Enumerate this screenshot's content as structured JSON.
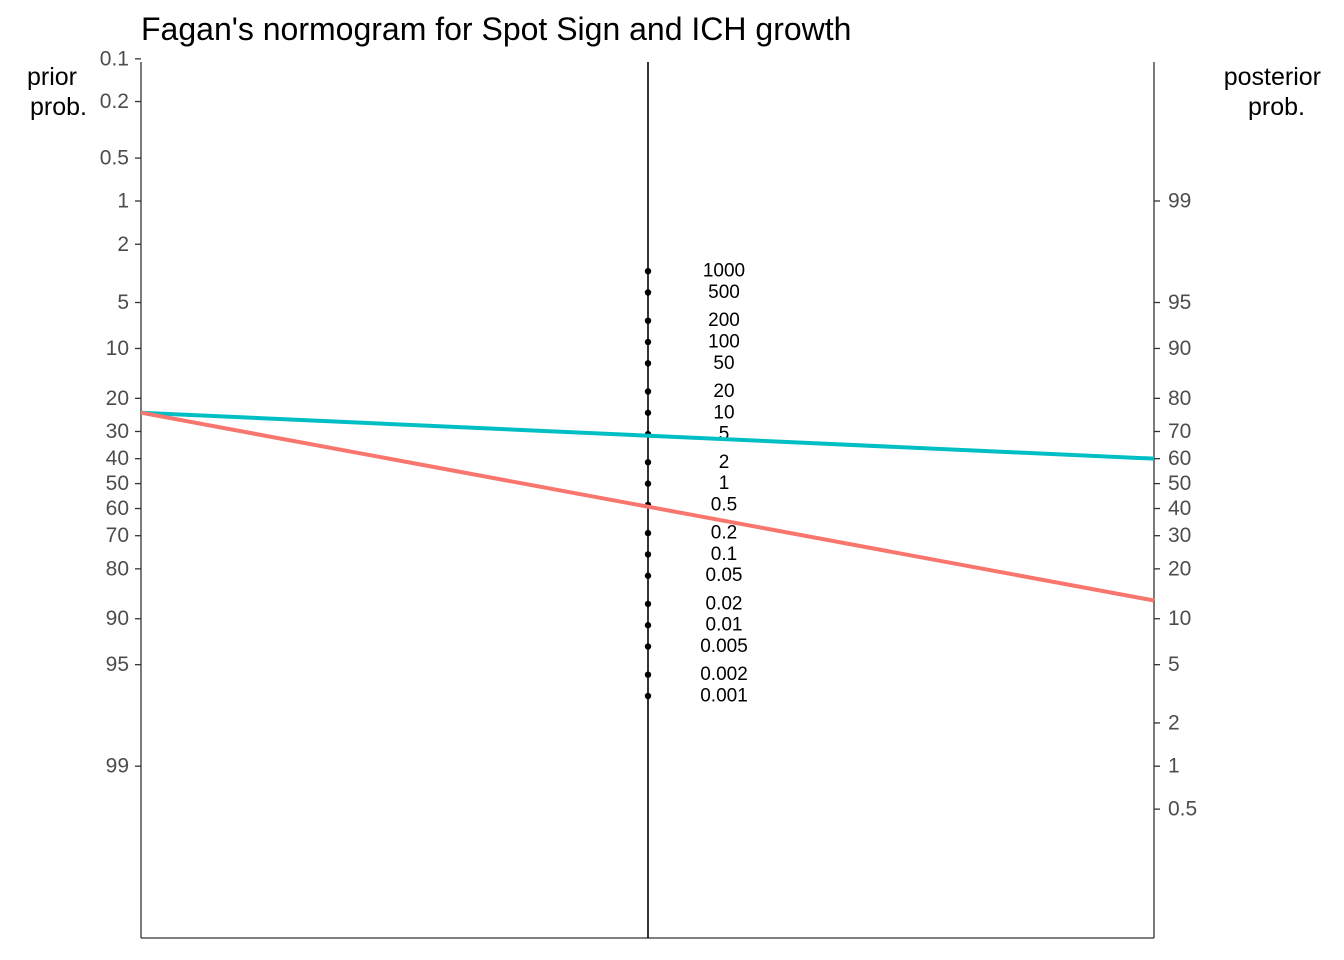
{
  "chart_data": {
    "type": "line",
    "title": "Fagan's normogram for Spot Sign and ICH growth",
    "left_axis_label": [
      "prior",
      "prob."
    ],
    "right_axis_label": [
      "posterior",
      "prob."
    ],
    "left_axis_ticks": [
      0.1,
      0.2,
      0.5,
      1,
      2,
      5,
      10,
      20,
      30,
      40,
      50,
      60,
      70,
      80,
      90,
      95,
      99
    ],
    "right_axis_ticks": [
      99,
      95,
      90,
      80,
      70,
      60,
      50,
      40,
      30,
      20,
      10,
      5,
      2,
      1,
      0.5
    ],
    "likelihood_ratio_ticks": [
      1000,
      500,
      200,
      100,
      50,
      20,
      10,
      5,
      2,
      1,
      0.5,
      0.2,
      0.1,
      0.05,
      0.02,
      0.01,
      0.005,
      0.002,
      0.001
    ],
    "grid": false,
    "legend": "none",
    "series": [
      {
        "prior_prob": 24,
        "likelihood_ratio": 4.8,
        "posterior_prob": 60,
        "color": "#00bfc4"
      },
      {
        "prior_prob": 24,
        "likelihood_ratio": 0.48,
        "posterior_prob": 13,
        "color": "#f8766d"
      }
    ]
  }
}
